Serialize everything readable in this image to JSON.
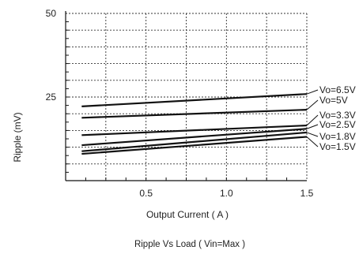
{
  "chart_data": {
    "type": "line",
    "title": "Ripple  Vs Load ( Vin=Max )",
    "xlabel": "Output Current ( A )",
    "ylabel": "Ripple (mV)",
    "xlim": [
      0,
      1.5
    ],
    "ylim": [
      0,
      50
    ],
    "xticks": [
      0.5,
      1.0,
      1.5
    ],
    "xtick_labels": [
      "0.5",
      "1.0",
      "1.5"
    ],
    "yticks": [
      25,
      50
    ],
    "ytick_labels": [
      "25",
      "50"
    ],
    "grid": true,
    "series": [
      {
        "name": "Vo=6.5V",
        "x": [
          0.1,
          1.5
        ],
        "y": [
          22.2,
          25.9
        ]
      },
      {
        "name": "Vo=5V",
        "x": [
          0.1,
          1.5
        ],
        "y": [
          18.8,
          21.2
        ]
      },
      {
        "name": "Vo=3.3V",
        "x": [
          0.1,
          1.5
        ],
        "y": [
          13.6,
          16.5
        ]
      },
      {
        "name": "Vo=2.5V",
        "x": [
          0.1,
          1.5
        ],
        "y": [
          10.6,
          15.5
        ]
      },
      {
        "name": "Vo=1.8V",
        "x": [
          0.1,
          1.5
        ],
        "y": [
          8.8,
          14.4
        ]
      },
      {
        "name": "Vo=1.5V",
        "x": [
          0.1,
          1.5
        ],
        "y": [
          8.0,
          13.1
        ]
      }
    ]
  }
}
